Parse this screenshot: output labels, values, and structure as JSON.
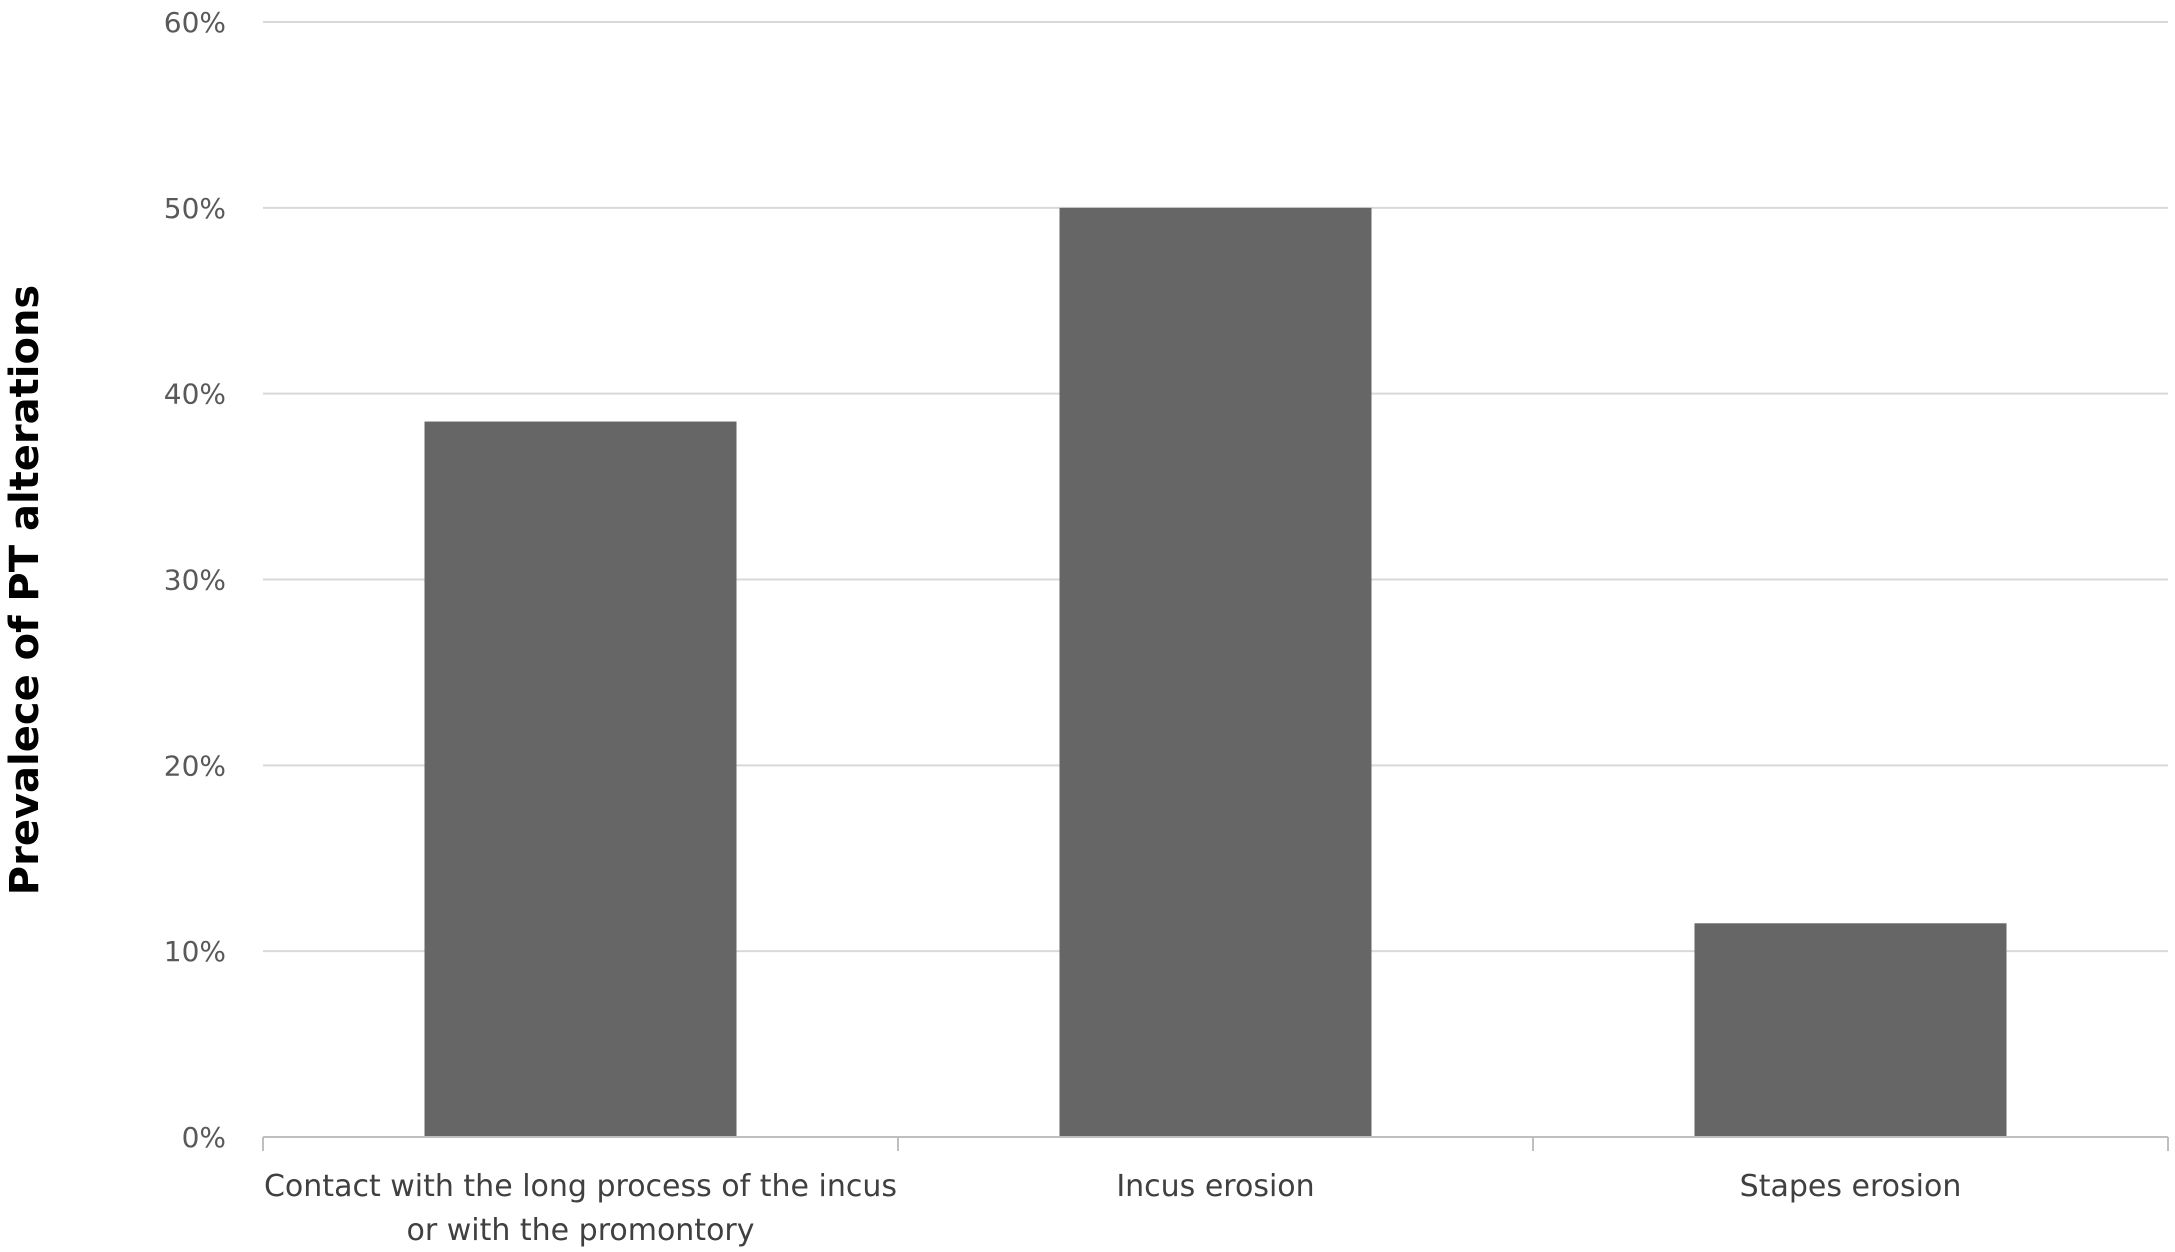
{
  "chart_data": {
    "type": "bar",
    "categories": [
      [
        "Contact with the long process of the incus",
        "or with the promontory"
      ],
      [
        "Incus erosion"
      ],
      [
        "Stapes erosion"
      ]
    ],
    "values": [
      38.5,
      50.0,
      11.5
    ],
    "ylabel": "Prevalece of PT alterations",
    "ylim": [
      0,
      60
    ],
    "yticks": [
      0,
      10,
      20,
      30,
      40,
      50,
      60
    ],
    "ytick_labels": [
      "0%",
      "10%",
      "20%",
      "30%",
      "40%",
      "50%",
      "60%"
    ],
    "grid": true,
    "legend": "none",
    "colors": {
      "bar": "#666666",
      "grid": "#d9d9d9",
      "axis": "#bfbfbf"
    }
  }
}
